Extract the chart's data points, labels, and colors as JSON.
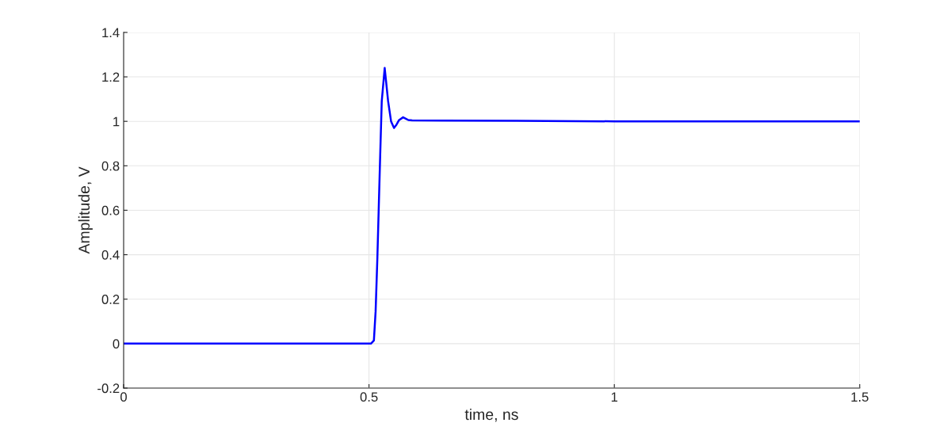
{
  "chart_data": {
    "type": "line",
    "xlabel": "time, ns",
    "ylabel": "Amplitude, V",
    "xlim": [
      0,
      1.5
    ],
    "ylim": [
      -0.2,
      1.4
    ],
    "xticks": [
      0,
      0.5,
      1,
      1.5
    ],
    "yticks": [
      -0.2,
      0,
      0.2,
      0.4,
      0.6,
      0.8,
      1,
      1.2,
      1.4
    ],
    "grid": true,
    "line_style": "solid",
    "series": [
      {
        "color": "#0000ff",
        "x": [
          0,
          0.25,
          0.504,
          0.51,
          0.5135,
          0.517,
          0.52,
          0.523,
          0.526,
          0.532,
          0.539,
          0.545,
          0.551,
          0.556,
          0.561,
          0.5695,
          0.575,
          0.58,
          0.588,
          0.65,
          0.8,
          1.0,
          1.25,
          1.5
        ],
        "values": [
          0,
          0,
          0,
          0.014,
          0.145,
          0.38,
          0.62,
          0.86,
          1.09,
          1.24,
          1.09,
          1.0,
          0.97,
          0.985,
          1.005,
          1.018,
          1.012,
          1.006,
          1.004,
          1.003,
          1.002,
          1.0,
          1.0,
          1.0
        ]
      }
    ]
  }
}
